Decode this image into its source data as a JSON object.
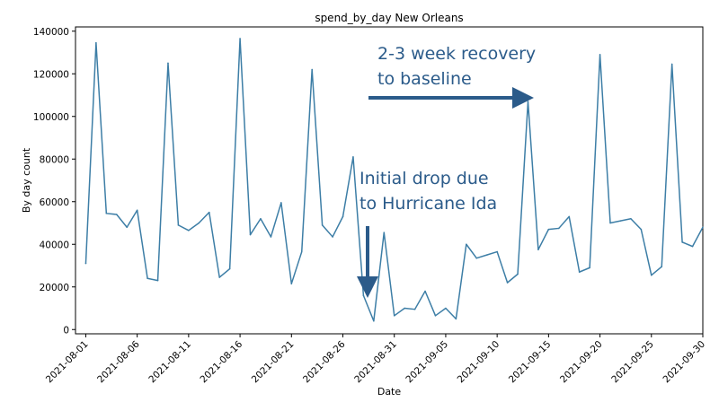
{
  "chart_data": {
    "type": "line",
    "title": "spend_by_day New Orleans",
    "xlabel": "Date",
    "ylabel": "By day count",
    "ylim": [
      -2000,
      142000
    ],
    "xlim": [
      "2021-07-31",
      "2021-09-30"
    ],
    "grid": false,
    "line_color": "#3d7ea6",
    "annotation_color": "#2b5b8a",
    "yticks": [
      0,
      20000,
      40000,
      60000,
      80000,
      100000,
      120000,
      140000
    ],
    "ytick_labels": [
      "0",
      "20000",
      "40000",
      "60000",
      "80000",
      "100000",
      "120000",
      "140000"
    ],
    "xticks": [
      "2021-08-01",
      "2021-08-06",
      "2021-08-11",
      "2021-08-16",
      "2021-08-21",
      "2021-08-26",
      "2021-08-31",
      "2021-09-05",
      "2021-09-10",
      "2021-09-15",
      "2021-09-20",
      "2021-09-25",
      "2021-09-30"
    ],
    "series": [
      {
        "x": [
          "2021-08-01",
          "2021-08-02",
          "2021-08-03",
          "2021-08-04",
          "2021-08-05",
          "2021-08-06",
          "2021-08-07",
          "2021-08-08",
          "2021-08-09",
          "2021-08-10",
          "2021-08-11",
          "2021-08-12",
          "2021-08-13",
          "2021-08-14",
          "2021-08-15",
          "2021-08-16",
          "2021-08-17",
          "2021-08-18",
          "2021-08-19",
          "2021-08-20",
          "2021-08-21",
          "2021-08-22",
          "2021-08-23",
          "2021-08-24",
          "2021-08-25",
          "2021-08-26",
          "2021-08-27",
          "2021-08-28",
          "2021-08-29",
          "2021-08-30",
          "2021-08-31",
          "2021-09-01",
          "2021-09-02",
          "2021-09-03",
          "2021-09-04",
          "2021-09-05",
          "2021-09-06",
          "2021-09-07",
          "2021-09-08",
          "2021-09-09",
          "2021-09-10",
          "2021-09-11",
          "2021-09-12",
          "2021-09-13",
          "2021-09-14",
          "2021-09-15",
          "2021-09-16",
          "2021-09-17",
          "2021-09-18",
          "2021-09-19",
          "2021-09-20",
          "2021-09-21",
          "2021-09-22",
          "2021-09-23",
          "2021-09-24",
          "2021-09-25",
          "2021-09-26",
          "2021-09-27",
          "2021-09-28",
          "2021-09-29",
          "2021-09-30"
        ],
        "values": [
          31000,
          134500,
          54500,
          54000,
          48000,
          56000,
          24000,
          23000,
          125000,
          49000,
          46500,
          50000,
          55000,
          24500,
          28500,
          136500,
          44500,
          52000,
          43500,
          59500,
          21500,
          36500,
          122000,
          49000,
          43500,
          53000,
          81000,
          16000,
          4000,
          45500,
          6500,
          10000,
          9500,
          18000,
          6500,
          10000,
          5000,
          40000,
          33500,
          35000,
          36500,
          22000,
          26000,
          107000,
          37500,
          47000,
          47500,
          53000,
          27000,
          29000,
          129000,
          50000,
          51000,
          52000,
          47000,
          25500,
          29500,
          124500,
          41000,
          39000,
          48000
        ]
      }
    ],
    "annotations": [
      {
        "lines": [
          "2-3 week recovery",
          "to baseline"
        ]
      },
      {
        "lines": [
          "Initial drop due",
          "to Hurricane Ida"
        ]
      }
    ]
  }
}
